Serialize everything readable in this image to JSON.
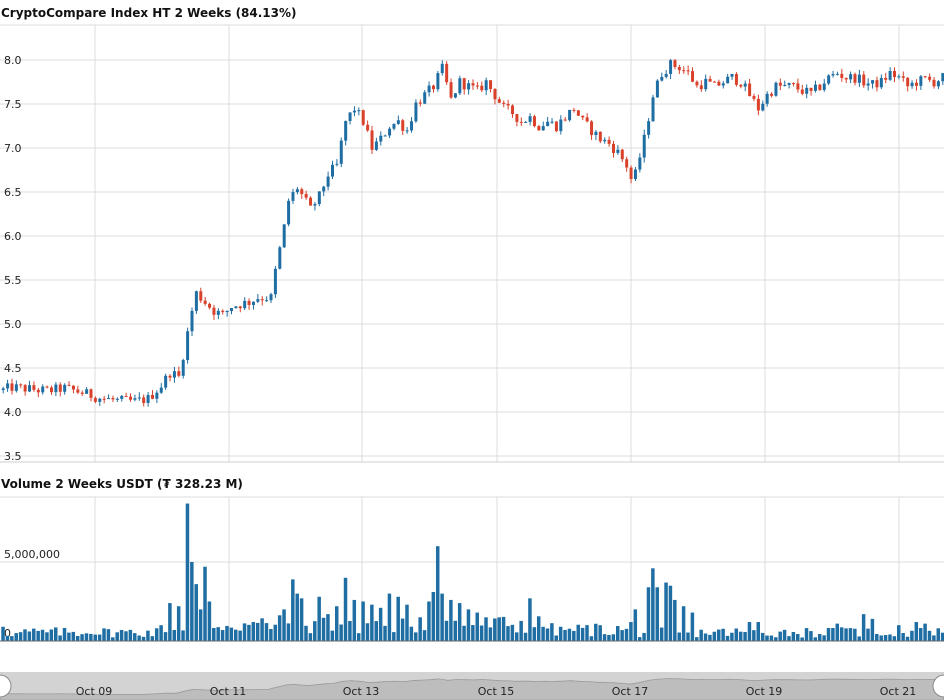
{
  "price_chart": {
    "title": "CryptoCompare Index HT 2 Weeks (84.13%)",
    "y_ticks": [
      "3.5",
      "4.0",
      "4.5",
      "5.0",
      "5.5",
      "6.0",
      "6.5",
      "7.0",
      "7.5",
      "8.0"
    ]
  },
  "volume_chart": {
    "title": "Volume 2 Weeks USDT (₮ 328.23 M)",
    "y_ticks": [
      "0",
      "5,000,000"
    ]
  },
  "navigator": {
    "x_ticks": [
      "Oct 09",
      "Oct 11",
      "Oct 13",
      "Oct 15",
      "Oct 17",
      "Oct 19",
      "Oct 21"
    ]
  },
  "colors": {
    "up": "#1f6ea3",
    "down": "#d9412b",
    "volume": "#1f6ea3",
    "grid": "#dcdcdc"
  },
  "chart_data": [
    {
      "type": "candlestick",
      "title": "CryptoCompare Index HT 2 Weeks (84.13%)",
      "x_range": [
        "Oct 08",
        "Oct 22"
      ],
      "ylim": [
        3.5,
        8.35
      ],
      "y_ticks": [
        3.5,
        4.0,
        4.5,
        5.0,
        5.5,
        6.0,
        6.5,
        7.0,
        7.5,
        8.0
      ],
      "close_path": [
        [
          0,
          4.25
        ],
        [
          2,
          4.28
        ],
        [
          6,
          4.26
        ],
        [
          10,
          4.24
        ],
        [
          14,
          4.27
        ],
        [
          18,
          4.22
        ],
        [
          22,
          4.16
        ],
        [
          26,
          4.13
        ],
        [
          30,
          4.12
        ],
        [
          33,
          4.15
        ],
        [
          36,
          4.3
        ],
        [
          38,
          4.45
        ],
        [
          40,
          4.4
        ],
        [
          42,
          4.9
        ],
        [
          43,
          5.15
        ],
        [
          44,
          5.35
        ],
        [
          46,
          5.25
        ],
        [
          48,
          5.15
        ],
        [
          50,
          5.1
        ],
        [
          52,
          5.2
        ],
        [
          56,
          5.25
        ],
        [
          58,
          5.3
        ],
        [
          61,
          5.3
        ],
        [
          62,
          5.6
        ],
        [
          64,
          6.1
        ],
        [
          65,
          6.4
        ],
        [
          67,
          6.55
        ],
        [
          70,
          6.3
        ],
        [
          72,
          6.45
        ],
        [
          74,
          6.7
        ],
        [
          76,
          6.8
        ],
        [
          78,
          7.3
        ],
        [
          80,
          7.45
        ],
        [
          82,
          7.3
        ],
        [
          84,
          7.0
        ],
        [
          86,
          7.1
        ],
        [
          88,
          7.25
        ],
        [
          90,
          7.3
        ],
        [
          92,
          7.2
        ],
        [
          94,
          7.5
        ],
        [
          96,
          7.6
        ],
        [
          98,
          7.7
        ],
        [
          100,
          7.9
        ],
        [
          102,
          7.55
        ],
        [
          104,
          7.75
        ],
        [
          106,
          7.7
        ],
        [
          108,
          7.65
        ],
        [
          110,
          7.75
        ],
        [
          112,
          7.6
        ],
        [
          114,
          7.45
        ],
        [
          116,
          7.4
        ],
        [
          118,
          7.3
        ],
        [
          120,
          7.35
        ],
        [
          122,
          7.25
        ],
        [
          124,
          7.3
        ],
        [
          126,
          7.25
        ],
        [
          128,
          7.35
        ],
        [
          130,
          7.45
        ],
        [
          132,
          7.3
        ],
        [
          134,
          7.2
        ],
        [
          136,
          7.1
        ],
        [
          138,
          7.05
        ],
        [
          140,
          6.95
        ],
        [
          142,
          6.8
        ],
        [
          143,
          6.65
        ],
        [
          144,
          6.7
        ],
        [
          146,
          7.1
        ],
        [
          148,
          7.6
        ],
        [
          150,
          7.85
        ],
        [
          152,
          7.95
        ],
        [
          154,
          7.92
        ],
        [
          156,
          7.85
        ],
        [
          158,
          7.7
        ],
        [
          160,
          7.75
        ],
        [
          162,
          7.7
        ],
        [
          164,
          7.75
        ],
        [
          166,
          7.8
        ],
        [
          168,
          7.75
        ],
        [
          170,
          7.6
        ],
        [
          172,
          7.45
        ],
        [
          174,
          7.6
        ],
        [
          176,
          7.7
        ],
        [
          178,
          7.7
        ],
        [
          180,
          7.7
        ],
        [
          182,
          7.65
        ],
        [
          184,
          7.62
        ],
        [
          186,
          7.7
        ],
        [
          188,
          7.8
        ],
        [
          190,
          7.85
        ],
        [
          192,
          7.8
        ],
        [
          194,
          7.8
        ],
        [
          196,
          7.75
        ],
        [
          198,
          7.72
        ],
        [
          200,
          7.75
        ],
        [
          202,
          7.85
        ],
        [
          204,
          7.8
        ],
        [
          206,
          7.7
        ],
        [
          208,
          7.75
        ],
        [
          210,
          7.78
        ],
        [
          212,
          7.75
        ],
        [
          214,
          7.8
        ]
      ],
      "up_color": "#1f6ea3",
      "down_color": "#d9412b"
    },
    {
      "type": "bar",
      "title": "Volume 2 Weeks USDT (₮ 328.23 M)",
      "x_range": [
        "Oct 08",
        "Oct 22"
      ],
      "ylim": [
        0,
        9000000
      ],
      "y_ticks": [
        0,
        5000000
      ],
      "baseline_volume": 550000,
      "spikes": [
        [
          0,
          900000
        ],
        [
          3,
          500000
        ],
        [
          20,
          450000
        ],
        [
          36,
          1000000
        ],
        [
          38,
          2400000
        ],
        [
          40,
          2200000
        ],
        [
          42,
          8700000
        ],
        [
          43,
          5000000
        ],
        [
          44,
          3600000
        ],
        [
          45,
          2000000
        ],
        [
          46,
          4700000
        ],
        [
          47,
          2500000
        ],
        [
          57,
          1200000
        ],
        [
          64,
          2000000
        ],
        [
          66,
          3900000
        ],
        [
          67,
          3000000
        ],
        [
          68,
          2700000
        ],
        [
          72,
          2800000
        ],
        [
          74,
          1700000
        ],
        [
          76,
          2200000
        ],
        [
          78,
          4000000
        ],
        [
          80,
          2600000
        ],
        [
          82,
          2500000
        ],
        [
          84,
          2300000
        ],
        [
          86,
          2100000
        ],
        [
          88,
          3000000
        ],
        [
          90,
          2800000
        ],
        [
          92,
          2300000
        ],
        [
          95,
          1500000
        ],
        [
          97,
          2500000
        ],
        [
          98,
          3100000
        ],
        [
          99,
          6000000
        ],
        [
          100,
          3000000
        ],
        [
          102,
          2600000
        ],
        [
          104,
          2400000
        ],
        [
          106,
          2000000
        ],
        [
          108,
          1800000
        ],
        [
          110,
          1500000
        ],
        [
          120,
          2700000
        ],
        [
          127,
          900000
        ],
        [
          136,
          1000000
        ],
        [
          143,
          1200000
        ],
        [
          144,
          2000000
        ],
        [
          147,
          3400000
        ],
        [
          148,
          4600000
        ],
        [
          149,
          3400000
        ],
        [
          151,
          3700000
        ],
        [
          152,
          3500000
        ],
        [
          153,
          2600000
        ],
        [
          155,
          2200000
        ],
        [
          157,
          1800000
        ],
        [
          170,
          1200000
        ],
        [
          172,
          1200000
        ],
        [
          190,
          1100000
        ],
        [
          196,
          1700000
        ],
        [
          198,
          1400000
        ],
        [
          204,
          1000000
        ],
        [
          208,
          1200000
        ],
        [
          210,
          1100000
        ]
      ],
      "color": "#1f6ea3"
    }
  ]
}
